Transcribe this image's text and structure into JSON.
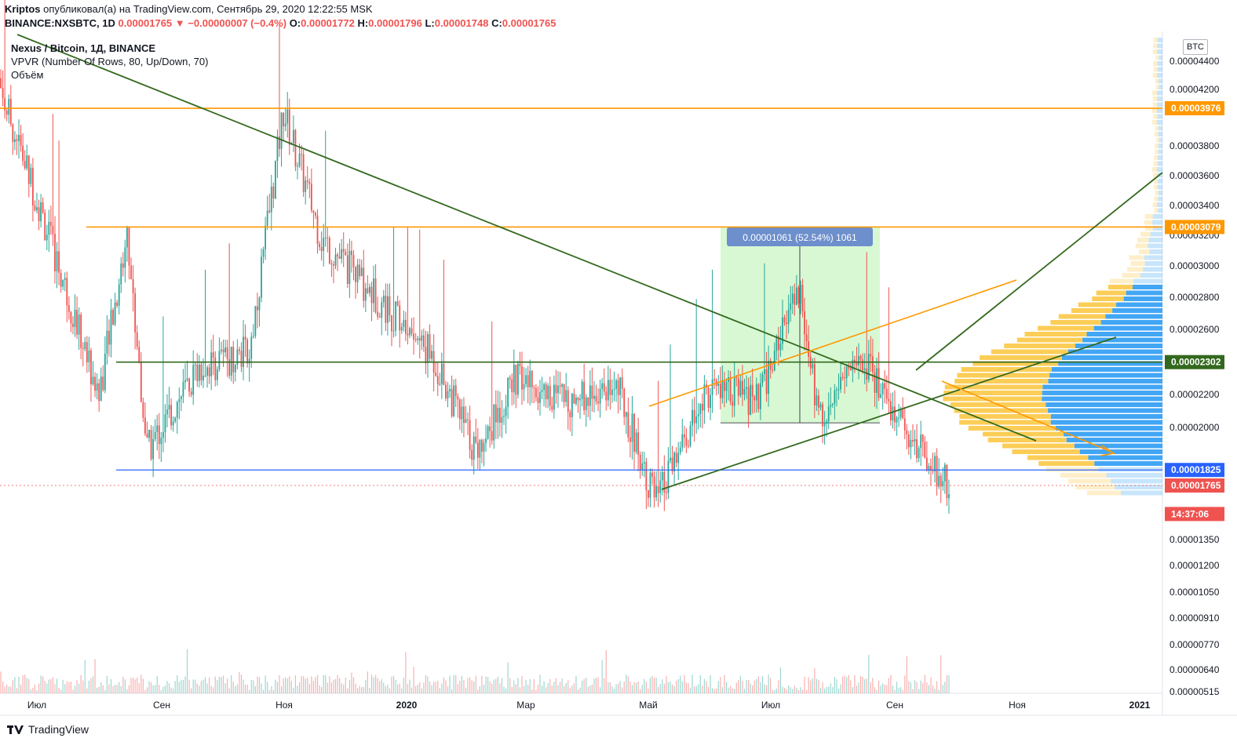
{
  "header": {
    "author": "Kriptos",
    "published_text": " опубликовал(а) на TradingView.com, Сентябрь 29, 2020 12:22:55 MSK",
    "symbol": "BINANCE:NXSBTC, 1D",
    "last": "0.00001765",
    "arrow": "▼",
    "change": "−0.00000007 (−0.4%)",
    "o_label": "O:",
    "o_value": "0.00001772",
    "h_label": "H:",
    "h_value": "0.00001796",
    "l_label": "L:",
    "l_value": "0.00001748",
    "c_label": "C:",
    "c_value": "0.00001765"
  },
  "legend": {
    "title": "Nexus / Bitcoin, 1Д, BINANCE",
    "indicator": "VPVR (Number Of Rows, 80, Up/Down, 70)",
    "volume": "Объём"
  },
  "currency_button": "BTC",
  "footer": {
    "brand": "TradingView"
  },
  "measure_label": "0.00001061 (52.54%) 1061",
  "price_tags": [
    {
      "value": "0.00003976",
      "price": 3.976e-05,
      "color": "#ff9800"
    },
    {
      "value": "0.00003079",
      "price": 3.079e-05,
      "color": "#ff9800"
    },
    {
      "value": "0.00002302",
      "price": 2.302e-05,
      "color": "#33691e"
    },
    {
      "value": "0.00001825",
      "price": 1.825e-05,
      "color": "#2962ff"
    },
    {
      "value": "0.00001765",
      "price": 1.765e-05,
      "color": "#ef5350"
    },
    {
      "value": "14:37:06",
      "price": 1.66e-05,
      "color": "#ef5350"
    }
  ],
  "colors": {
    "up": "#26a69a",
    "down": "#ef5350",
    "orange": "#ff9800",
    "green_line": "#33691e",
    "blue_line": "#2962ff",
    "vpvr_up": "#2196f3",
    "vpvr_down": "#fbc02d",
    "measure_fill": "#c8f5c0"
  },
  "chart_data": {
    "type": "candlestick",
    "symbol": "BINANCE:NXSBTC",
    "interval": "1D",
    "y_scale": "log",
    "y_ticks": [
      "0.00004400",
      "0.00004200",
      "0.00003800",
      "0.00003600",
      "0.00003400",
      "0.00003200",
      "0.00003000",
      "0.00002800",
      "0.00002600",
      "0.00002400",
      "0.00002200",
      "0.00002000",
      "0.00001500",
      "0.00001350",
      "0.00001200",
      "0.00001050",
      "0.00000910",
      "0.00000770",
      "0.00000640",
      "0.00000515"
    ],
    "x_ticks": [
      "Июл",
      "Сен",
      "Ноя",
      "2020",
      "Мар",
      "Май",
      "Июл",
      "Сен",
      "Ноя",
      "2021"
    ],
    "horizontal_levels": [
      3.976e-05,
      3.079e-05,
      2.302e-05,
      1.825e-05
    ],
    "measure": {
      "from": 2.02e-05,
      "to": 3.079e-05,
      "change": "0.00001061",
      "percent": "52.54%",
      "bars": 1061
    },
    "ohlc_anchor_points": [
      {
        "x": "2019-06-10",
        "close": 4.3e-05
      },
      {
        "x": "2019-07-05",
        "close": 3.1e-05
      },
      {
        "x": "2019-08-01",
        "close": 2.15e-05
      },
      {
        "x": "2019-08-15",
        "close": 3.02e-05
      },
      {
        "x": "2019-08-25",
        "close": 1.9e-05
      },
      {
        "x": "2019-09-20",
        "close": 2.28e-05
      },
      {
        "x": "2019-10-15",
        "close": 2.35e-05
      },
      {
        "x": "2019-11-01",
        "close": 3.95e-05
      },
      {
        "x": "2019-11-20",
        "close": 3e-05
      },
      {
        "x": "2019-12-20",
        "close": 2.62e-05
      },
      {
        "x": "2020-01-15",
        "close": 2.32e-05
      },
      {
        "x": "2020-02-05",
        "close": 1.9e-05
      },
      {
        "x": "2020-02-25",
        "close": 2.22e-05
      },
      {
        "x": "2020-03-20",
        "close": 2.12e-05
      },
      {
        "x": "2020-04-15",
        "close": 2.2e-05
      },
      {
        "x": "2020-05-05",
        "close": 1.7e-05
      },
      {
        "x": "2020-06-01",
        "close": 2.18e-05
      },
      {
        "x": "2020-06-25",
        "close": 2.12e-05
      },
      {
        "x": "2020-07-15",
        "close": 2.7e-05
      },
      {
        "x": "2020-07-25",
        "close": 2.05e-05
      },
      {
        "x": "2020-08-15",
        "close": 2.35e-05
      },
      {
        "x": "2020-09-05",
        "close": 2e-05
      },
      {
        "x": "2020-09-29",
        "close": 1.765e-05
      }
    ]
  }
}
